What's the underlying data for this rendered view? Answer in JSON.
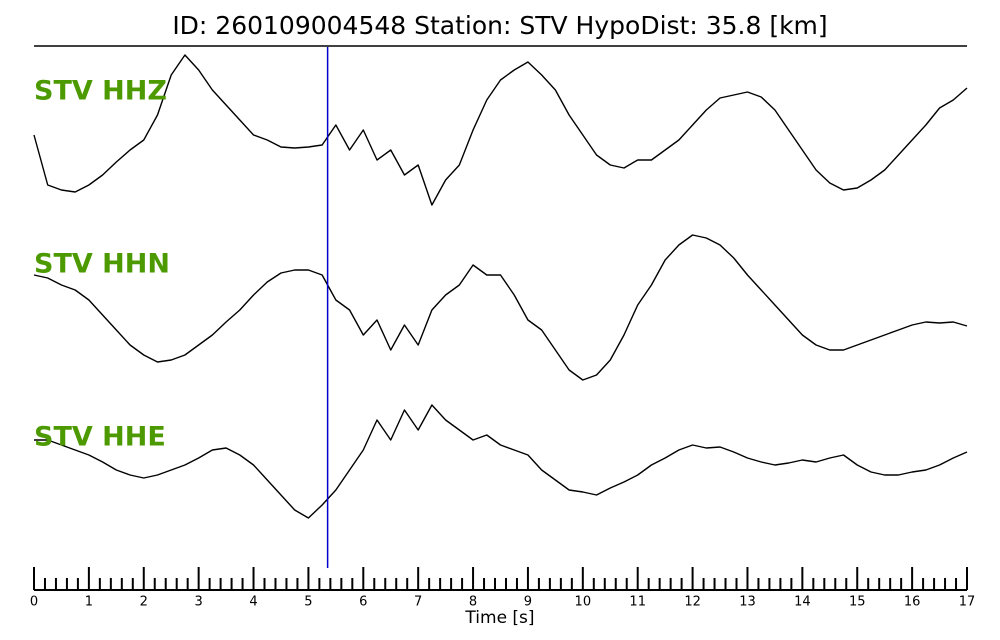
{
  "chart_data": {
    "type": "line",
    "title": "ID: 260109004548   Station: STV   HypoDist:    35.8 [km]",
    "xlabel": "Time [s]",
    "xlim": [
      0,
      17
    ],
    "xticks": [
      0,
      1,
      2,
      3,
      4,
      5,
      6,
      7,
      8,
      9,
      10,
      11,
      12,
      13,
      14,
      15,
      16,
      17
    ],
    "xminorticks": [
      0.2,
      0.4,
      0.6,
      0.8,
      1.2,
      1.4,
      1.6,
      1.8,
      2.2,
      2.4,
      2.6,
      2.8,
      3.2,
      3.4,
      3.6,
      3.8,
      4.2,
      4.4,
      4.6,
      4.8,
      5.2,
      5.4,
      5.6,
      5.8,
      6.2,
      6.4,
      6.6,
      6.8,
      7.2,
      7.4,
      7.6,
      7.8,
      8.2,
      8.4,
      8.6,
      8.8,
      9.2,
      9.4,
      9.6,
      9.8,
      10.2,
      10.4,
      10.6,
      10.8,
      11.2,
      11.4,
      11.6,
      11.8,
      12.2,
      12.4,
      12.6,
      12.8,
      13.2,
      13.4,
      13.6,
      13.8,
      14.2,
      14.4,
      14.6,
      14.8,
      15.2,
      15.4,
      15.6,
      15.8,
      16.2,
      16.4,
      16.6,
      16.8
    ],
    "ylim": [
      0,
      513
    ],
    "pick_x": 5.35,
    "pick_color": "#0000cc",
    "label_color": "#4c9a00",
    "x": [
      0,
      0.25,
      0.5,
      0.75,
      1,
      1.25,
      1.5,
      1.75,
      2,
      2.25,
      2.5,
      2.75,
      3,
      3.25,
      3.5,
      3.75,
      4,
      4.25,
      4.5,
      4.75,
      5,
      5.25,
      5.5,
      5.75,
      6,
      6.25,
      6.5,
      6.75,
      7,
      7.25,
      7.5,
      7.75,
      8,
      8.25,
      8.5,
      8.75,
      9,
      9.25,
      9.5,
      9.75,
      10,
      10.25,
      10.5,
      10.75,
      11,
      11.25,
      11.5,
      11.75,
      12,
      12.25,
      12.5,
      12.75,
      13,
      13.25,
      13.5,
      13.75,
      14,
      14.25,
      14.5,
      14.75,
      15,
      15.25,
      15.5,
      15.75,
      16,
      16.25,
      16.5,
      16.75,
      17
    ],
    "series": [
      {
        "name": "STV HHZ",
        "color": "#000000",
        "values": [
          425,
          375,
          370,
          368,
          375,
          385,
          398,
          410,
          420,
          445,
          485,
          505,
          490,
          470,
          455,
          440,
          425,
          420,
          413,
          412,
          413,
          415,
          435,
          410,
          430,
          400,
          410,
          385,
          395,
          355,
          380,
          395,
          430,
          460,
          480,
          490,
          498,
          485,
          470,
          445,
          425,
          405,
          395,
          392,
          400,
          400,
          410,
          420,
          435,
          450,
          462,
          465,
          468,
          463,
          450,
          430,
          410,
          390,
          377,
          370,
          372,
          380,
          390,
          405,
          420,
          435,
          452,
          460,
          472
        ]
      },
      {
        "name": "STV HHN",
        "color": "#000000",
        "values": [
          285,
          282,
          275,
          270,
          260,
          245,
          230,
          215,
          205,
          198,
          200,
          205,
          215,
          225,
          238,
          250,
          265,
          278,
          287,
          290,
          290,
          285,
          260,
          250,
          225,
          240,
          210,
          235,
          215,
          250,
          265,
          275,
          295,
          285,
          285,
          265,
          240,
          230,
          210,
          190,
          180,
          185,
          200,
          225,
          255,
          275,
          300,
          315,
          325,
          322,
          315,
          302,
          285,
          270,
          255,
          240,
          225,
          215,
          210,
          210,
          215,
          220,
          225,
          230,
          235,
          238,
          237,
          238,
          234
        ]
      },
      {
        "name": "STV HHE",
        "color": "#000000",
        "values": [
          120,
          120,
          115,
          110,
          105,
          98,
          90,
          85,
          82,
          85,
          90,
          95,
          102,
          110,
          112,
          105,
          95,
          80,
          65,
          50,
          42,
          55,
          70,
          90,
          110,
          140,
          120,
          150,
          130,
          155,
          140,
          130,
          120,
          125,
          115,
          110,
          105,
          90,
          80,
          70,
          68,
          65,
          72,
          78,
          85,
          95,
          102,
          110,
          115,
          112,
          113,
          108,
          102,
          98,
          95,
          97,
          100,
          98,
          102,
          105,
          95,
          88,
          85,
          85,
          88,
          90,
          95,
          102,
          108
        ]
      }
    ]
  }
}
